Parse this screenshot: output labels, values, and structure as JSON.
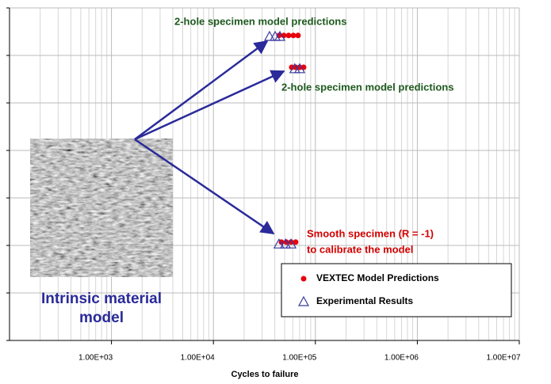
{
  "chart_data": {
    "type": "scatter",
    "x_label": "Cycles to failure",
    "x_log": true,
    "xlim": [
      100,
      10000000
    ],
    "xticks": [
      {
        "value": 1000,
        "label": "1.00E+03"
      },
      {
        "value": 10000,
        "label": "1.00E+04"
      },
      {
        "value": 100000,
        "label": "1.00E+05"
      },
      {
        "value": 1000000,
        "label": "1.00E+06"
      },
      {
        "value": 10000000,
        "label": "1.00E+07"
      }
    ],
    "ylim": [
      0,
      7
    ],
    "yticks": [
      0,
      1,
      2,
      3,
      4,
      5,
      6,
      7
    ],
    "grid": true,
    "legend": "lower right",
    "annotations": [
      "2-hole specimen model predictions",
      "2-hole specimen model predictions",
      "Smooth specimen (R = -1)",
      "to calibrate the model",
      "Intrinsic material",
      "model"
    ],
    "series": [
      {
        "name": "VEXTEC Model Predictions",
        "color": "#e8000b",
        "marker": "circle",
        "x": [
          44000,
          49000,
          54600,
          60800,
          67600,
          58600,
          64100,
          70200,
          76700,
          46400,
          51800,
          57700,
          64100
        ],
        "values": [
          6.42,
          6.42,
          6.42,
          6.42,
          6.42,
          5.75,
          5.75,
          5.75,
          5.75,
          2.07,
          2.07,
          2.07,
          2.07
        ]
      },
      {
        "name": "Experimental Results",
        "color": "#3a3aa0",
        "marker": "triangle",
        "x": [
          35500,
          40300,
          44900,
          62800,
          70200,
          43900,
          50900,
          57700
        ],
        "values": [
          6.4,
          6.4,
          6.4,
          5.72,
          5.72,
          2.03,
          2.03,
          2.03
        ]
      }
    ]
  }
}
